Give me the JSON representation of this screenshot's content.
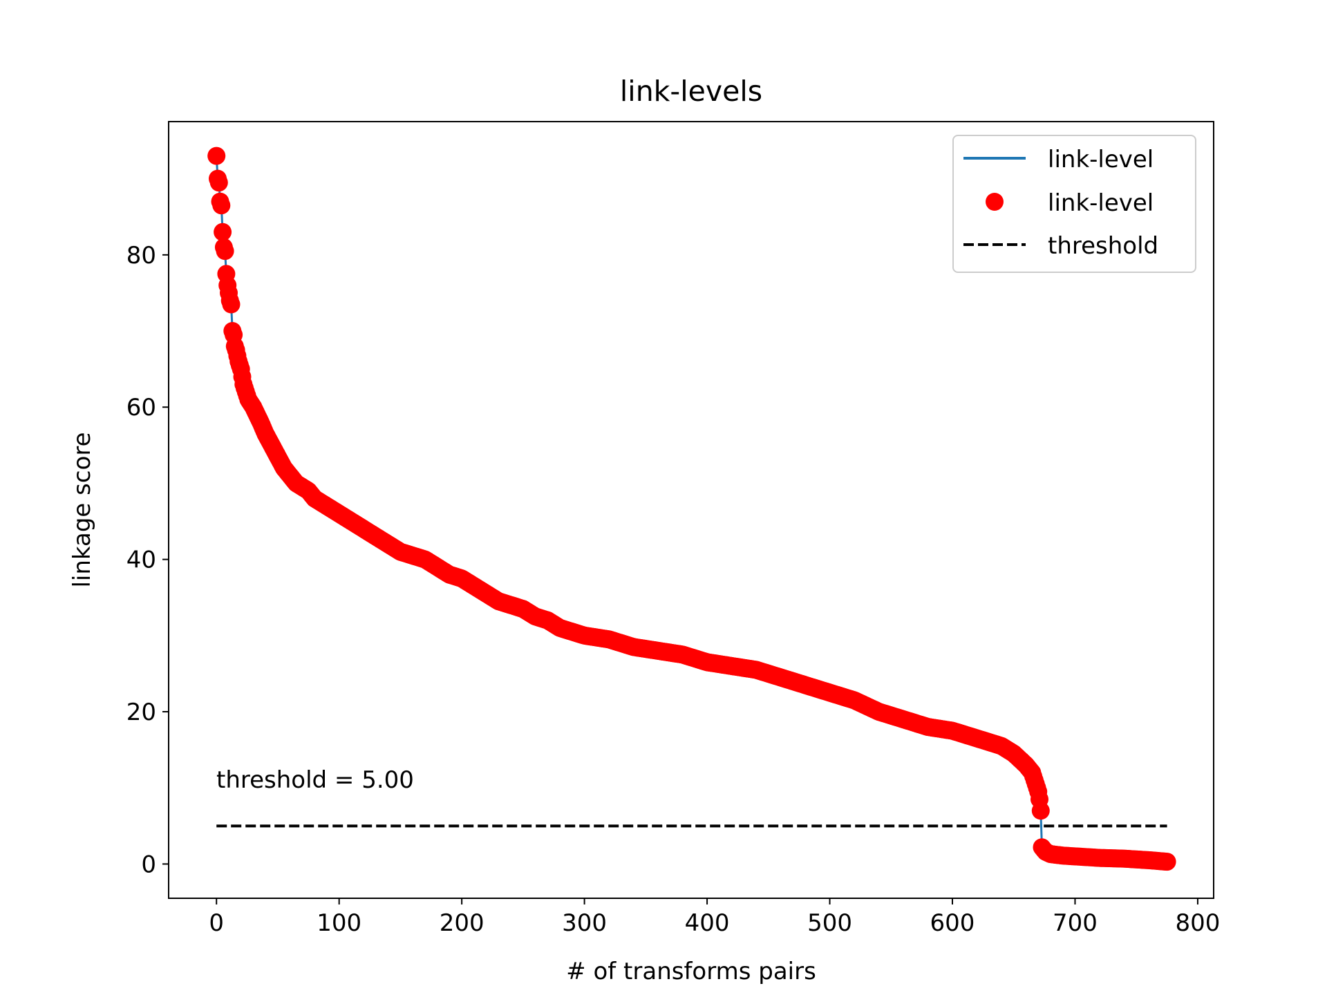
{
  "chart_data": {
    "type": "line",
    "title": "link-levels",
    "xlabel": "# of transforms pairs",
    "ylabel": "linkage score",
    "xlim": [
      -39,
      813
    ],
    "ylim": [
      -4.5,
      97.5
    ],
    "xticks": [
      0,
      100,
      200,
      300,
      400,
      500,
      600,
      700,
      800
    ],
    "xtick_labels": [
      "0",
      "100",
      "200",
      "300",
      "400",
      "500",
      "600",
      "700",
      "800"
    ],
    "yticks": [
      0,
      20,
      40,
      60,
      80
    ],
    "ytick_labels": [
      "0",
      "20",
      "40",
      "60",
      "80"
    ],
    "grid": false,
    "legend_position": "upper right",
    "legend": [
      {
        "label": "link-level",
        "style": "line",
        "color": "#1f77b4"
      },
      {
        "label": "link-level",
        "style": "marker",
        "color": "#ff0000"
      },
      {
        "label": "threshold",
        "style": "dashed",
        "color": "#000000"
      }
    ],
    "annotation": "threshold = 5.00",
    "threshold": {
      "value": 5.0,
      "x_range": [
        0,
        775
      ],
      "color": "#000000"
    },
    "series": [
      {
        "name": "link-level",
        "line_color": "#1f77b4",
        "marker_color": "#ff0000",
        "x": [
          0,
          1,
          2,
          3,
          4,
          5,
          6,
          7,
          8,
          9,
          10,
          11,
          12,
          13,
          14,
          15,
          16,
          18,
          20,
          22,
          24,
          26,
          28,
          30,
          33,
          36,
          40,
          45,
          50,
          55,
          60,
          65,
          70,
          75,
          80,
          90,
          100,
          110,
          120,
          130,
          140,
          150,
          160,
          170,
          180,
          190,
          200,
          210,
          220,
          230,
          240,
          250,
          260,
          270,
          280,
          290,
          300,
          320,
          340,
          360,
          380,
          400,
          420,
          440,
          460,
          480,
          500,
          520,
          540,
          560,
          580,
          600,
          620,
          640,
          650,
          660,
          665,
          668,
          670,
          671,
          672,
          673,
          674,
          675,
          676,
          680,
          690,
          700,
          720,
          740,
          760,
          775
        ],
        "y": [
          93,
          90,
          89.5,
          87,
          86.5,
          83,
          81,
          80.5,
          77.5,
          76,
          75,
          74,
          73.5,
          70,
          69.5,
          68,
          67.5,
          66,
          65,
          63,
          62,
          61,
          60.5,
          60,
          59,
          58,
          56.5,
          55,
          53.5,
          52,
          51,
          50,
          49.5,
          49,
          48,
          47,
          46,
          45,
          44,
          43,
          42,
          41,
          40.5,
          40,
          39,
          38,
          37.5,
          36.5,
          35.5,
          34.5,
          34,
          33.5,
          32.5,
          32,
          31,
          30.5,
          30,
          29.5,
          28.5,
          28,
          27.5,
          26.5,
          26,
          25.5,
          24.5,
          23.5,
          22.5,
          21.5,
          20,
          19,
          18,
          17.5,
          16.5,
          15.5,
          14.5,
          13,
          12,
          10.5,
          9.5,
          8.5,
          7,
          2.2,
          2.0,
          1.8,
          1.6,
          1.3,
          1.1,
          1.0,
          0.8,
          0.7,
          0.5,
          0.3
        ]
      }
    ]
  }
}
